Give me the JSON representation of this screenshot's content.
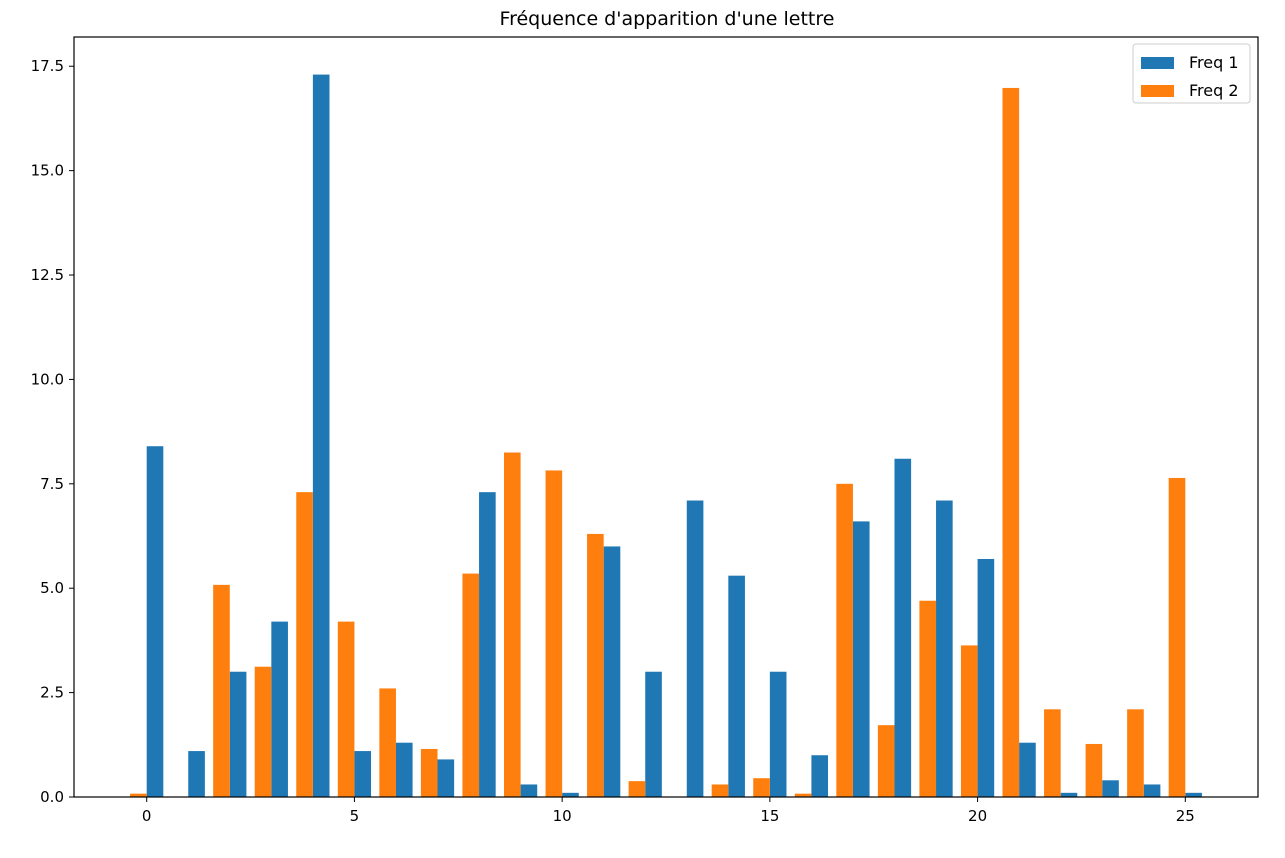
{
  "chart_data": {
    "type": "bar",
    "title": "Fréquence d'apparition d'une lettre",
    "xlabel": "",
    "ylabel": "",
    "xlim": [
      -1.75,
      26.75
    ],
    "ylim": [
      0,
      18.2
    ],
    "x_ticks": [
      0,
      5,
      10,
      15,
      20,
      25
    ],
    "y_ticks": [
      "0.0",
      "2.5",
      "5.0",
      "7.5",
      "10.0",
      "12.5",
      "15.0",
      "17.5"
    ],
    "grid": false,
    "legend_position": "top-right",
    "bar_width": 0.4,
    "x": [
      0,
      1,
      2,
      3,
      4,
      5,
      6,
      7,
      8,
      9,
      10,
      11,
      12,
      13,
      14,
      15,
      16,
      17,
      18,
      19,
      20,
      21,
      22,
      23,
      24,
      25
    ],
    "series": [
      {
        "name": "Freq 1",
        "color": "#1f77b4",
        "offset": 0,
        "values": [
          8.4,
          1.1,
          3.0,
          4.2,
          17.3,
          1.1,
          1.3,
          0.9,
          7.3,
          0.3,
          0.1,
          6.0,
          3.0,
          7.1,
          5.3,
          3.0,
          1.0,
          6.6,
          8.1,
          7.1,
          5.7,
          1.3,
          0.1,
          0.4,
          0.3,
          0.1
        ]
      },
      {
        "name": "Freq 2",
        "color": "#ff7f0e",
        "offset": -0.4,
        "values": [
          0.08,
          0.0,
          5.08,
          3.12,
          7.3,
          4.2,
          2.6,
          1.15,
          5.35,
          8.25,
          7.82,
          6.3,
          0.38,
          0.0,
          0.3,
          0.45,
          0.08,
          7.5,
          1.72,
          4.7,
          3.63,
          16.98,
          2.1,
          1.27,
          2.1,
          7.64
        ]
      }
    ]
  }
}
